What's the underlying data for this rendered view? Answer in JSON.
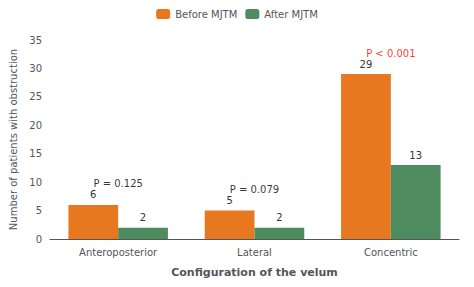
{
  "chart_data": {
    "type": "bar",
    "xlabel": "Configuration of the velum",
    "ylabel": "Number of patients with obstruction",
    "categories": [
      "Anteroposterior",
      "Lateral",
      "Concentric"
    ],
    "series": [
      {
        "name": "Before MJTM",
        "color": "#E87820",
        "values": [
          6,
          5,
          29
        ]
      },
      {
        "name": "After MJTM",
        "color": "#4E8B5F",
        "values": [
          2,
          2,
          13
        ]
      }
    ],
    "ylim": [
      0,
      35
    ],
    "yticks": [
      0,
      5,
      10,
      15,
      20,
      25,
      30,
      35
    ],
    "grid": false,
    "legend": "top",
    "data_labels": true,
    "annotations": [
      {
        "text": "P = 0.125",
        "color": "black",
        "category": "Anteroposterior"
      },
      {
        "text": "P = 0.079",
        "color": "black",
        "category": "Lateral"
      },
      {
        "text": "P < 0.001",
        "color": "red",
        "category": "Concentric"
      }
    ]
  }
}
